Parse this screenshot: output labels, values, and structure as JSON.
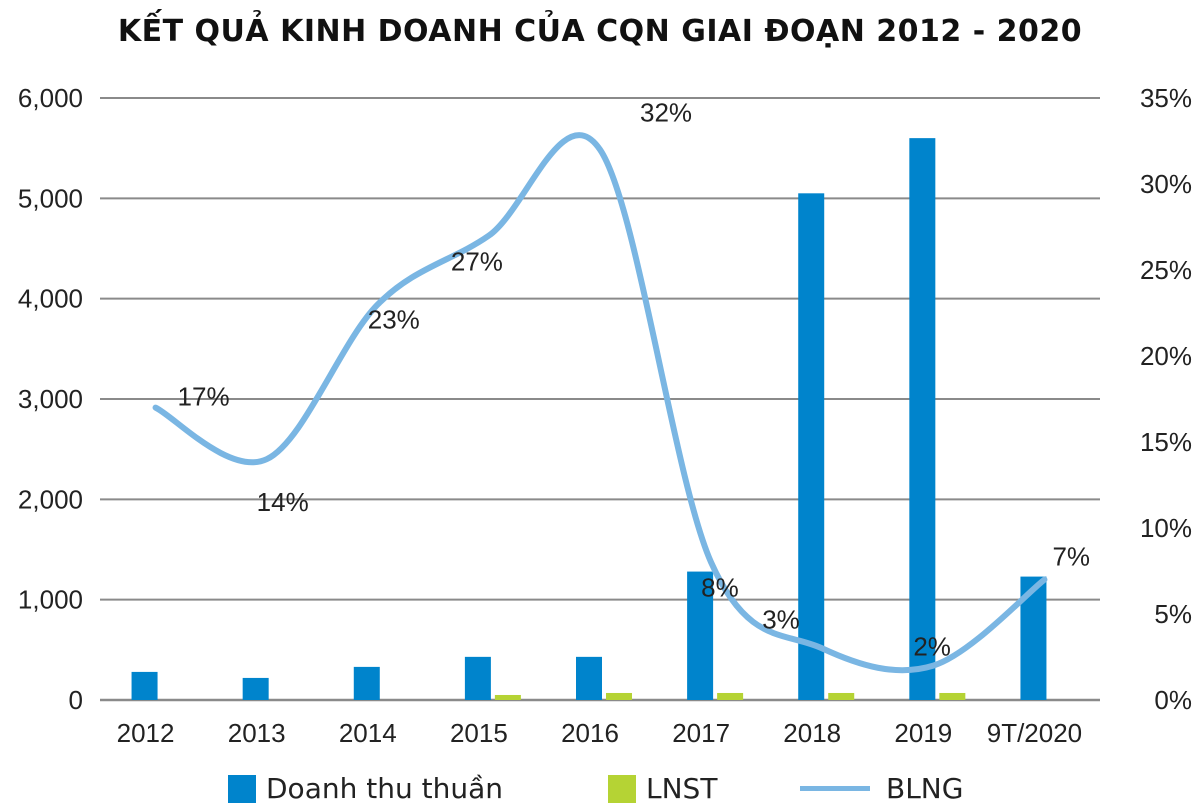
{
  "chart_data": {
    "type": "bar+line",
    "title": "KẾT QUẢ KINH DOANH CỦA CQN GIAI ĐOẠN 2012 - 2020",
    "categories": [
      "2012",
      "2013",
      "2014",
      "2015",
      "2016",
      "2017",
      "2018",
      "2019",
      "9T/2020"
    ],
    "series": [
      {
        "name": "Doanh thu thuần",
        "type": "bar",
        "axis": "left",
        "color": "#0084cc",
        "values": [
          280,
          220,
          330,
          430,
          430,
          1280,
          5050,
          5600,
          1230
        ]
      },
      {
        "name": "LNST",
        "type": "bar",
        "axis": "left",
        "color": "#b5d334",
        "values": [
          0,
          0,
          0,
          50,
          70,
          70,
          70,
          70,
          0
        ]
      },
      {
        "name": "BLNG",
        "type": "line",
        "axis": "right",
        "color": "#7ab6e3",
        "values": [
          17,
          14,
          23,
          27,
          32,
          8,
          3,
          2,
          7
        ],
        "labels": [
          "17%",
          "14%",
          "23%",
          "27%",
          "32%",
          "8%",
          "3%",
          "2%",
          "7%"
        ]
      }
    ],
    "left_axis": {
      "ylim": [
        0,
        6000
      ],
      "ticks": [
        "0",
        "1,000",
        "2,000",
        "3,000",
        "4,000",
        "5,000",
        "6,000"
      ]
    },
    "right_axis": {
      "ylim": [
        0,
        35
      ],
      "ticks": [
        "0%",
        "5%",
        "10%",
        "15%",
        "20%",
        "25%",
        "30%",
        "35%"
      ]
    },
    "grid": true,
    "legend_position": "bottom"
  }
}
